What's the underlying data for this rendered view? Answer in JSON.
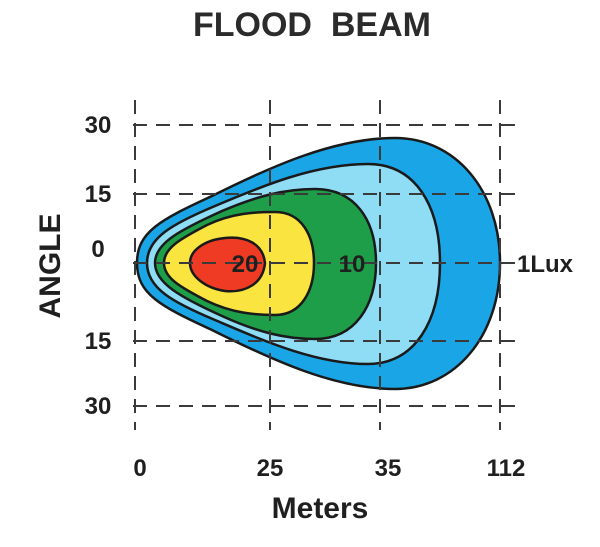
{
  "chart_data": {
    "type": "contour",
    "title": "FLOOD  BEAM",
    "xlabel": "Meters",
    "ylabel": "ANGLE",
    "x_ticks": [
      "0",
      "25",
      "35",
      "112"
    ],
    "y_ticks": [
      "30",
      "15",
      "0",
      "15",
      "30"
    ],
    "grid": true,
    "contours": [
      {
        "label": "1Lux",
        "color": "#1aa6e6",
        "reach": "112"
      },
      {
        "label": "",
        "color": "#8fdcf5",
        "reach": ""
      },
      {
        "label": "10",
        "color": "#1e9e48",
        "reach": ""
      },
      {
        "label": "",
        "color": "#f9e440",
        "reach": ""
      },
      {
        "label": "20",
        "color": "#ef3a24",
        "reach": ""
      }
    ]
  }
}
